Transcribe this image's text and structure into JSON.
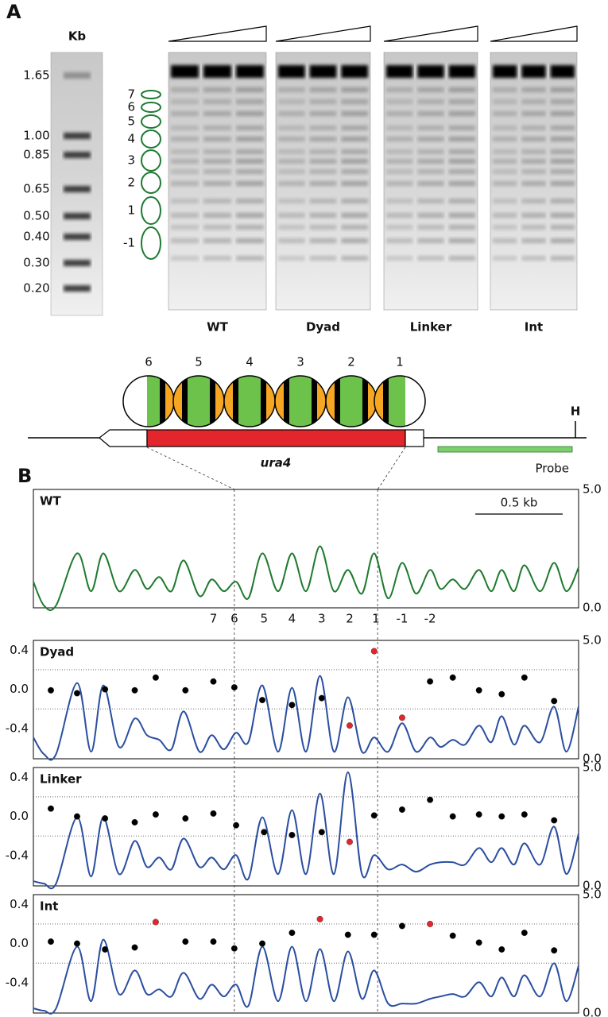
{
  "panel_a": {
    "label": "A",
    "marker_header": "Kb",
    "markers": [
      "1.65",
      "1.00",
      "0.85",
      "0.65",
      "0.50",
      "0.40",
      "0.30",
      "0.20"
    ],
    "nucleosomes": [
      "7",
      "6",
      "5",
      "4",
      "3",
      "2",
      "1",
      "-1"
    ],
    "lanes": [
      "WT",
      "Dyad",
      "Linker",
      "Int"
    ]
  },
  "panel_b": {
    "label": "B",
    "nucleosomes": [
      "6",
      "5",
      "4",
      "3",
      "2",
      "1"
    ],
    "gene": "ura4",
    "site": "H",
    "probe": "Probe",
    "guides": [
      1.15,
      1.97
    ]
  },
  "chart_data": [
    {
      "type": "line",
      "title": "WT",
      "x": [
        0,
        0.06,
        0.13,
        0.25,
        0.33,
        0.4,
        0.49,
        0.58,
        0.65,
        0.72,
        0.79,
        0.86,
        0.95,
        1.02,
        1.09,
        1.16,
        1.23,
        1.31,
        1.4,
        1.48,
        1.56,
        1.64,
        1.72,
        1.8,
        1.88,
        1.95,
        2.03,
        2.11,
        2.19,
        2.27,
        2.33,
        2.4,
        2.47,
        2.55,
        2.62,
        2.68,
        2.75,
        2.81,
        2.9,
        2.98,
        3.05,
        3.12
      ],
      "xlim": [
        0,
        3.12
      ],
      "series": [
        {
          "color": "#1f7a2e",
          "axis": "y2",
          "values": [
            1.1,
            0.1,
            0.1,
            2.3,
            0.7,
            2.3,
            0.7,
            1.6,
            0.8,
            1.3,
            0.7,
            2.0,
            0.5,
            1.2,
            0.7,
            1.1,
            0.4,
            2.3,
            0.7,
            2.3,
            0.7,
            2.6,
            0.7,
            1.6,
            0.6,
            2.3,
            0.4,
            1.9,
            0.6,
            1.6,
            0.8,
            1.2,
            0.8,
            1.6,
            0.7,
            1.6,
            0.7,
            1.8,
            0.7,
            1.9,
            0.7,
            1.7
          ]
        }
      ],
      "y2lim": [
        0,
        5
      ],
      "y2ticks": [
        {
          "value": 0,
          "label": "0.0"
        },
        {
          "value": 5,
          "label": "5.0"
        }
      ],
      "scale_bar": {
        "label": "0.5 kb",
        "length": 0.5
      },
      "position_labels": {
        "labels": [
          "7",
          "6",
          "5",
          "4",
          "3",
          "2",
          "1",
          "-1",
          "-2"
        ],
        "x": [
          1.03,
          1.15,
          1.32,
          1.48,
          1.65,
          1.81,
          1.96,
          2.11,
          2.27
        ]
      }
    },
    {
      "type": "line",
      "title": "Dyad",
      "x": [
        0,
        0.06,
        0.13,
        0.25,
        0.33,
        0.4,
        0.49,
        0.58,
        0.65,
        0.72,
        0.79,
        0.86,
        0.95,
        1.02,
        1.09,
        1.16,
        1.23,
        1.31,
        1.4,
        1.48,
        1.56,
        1.64,
        1.72,
        1.8,
        1.88,
        1.95,
        2.03,
        2.11,
        2.19,
        2.27,
        2.33,
        2.4,
        2.47,
        2.55,
        2.62,
        2.68,
        2.75,
        2.81,
        2.9,
        2.98,
        3.05,
        3.12
      ],
      "xlim": [
        0,
        3.12
      ],
      "series": [
        {
          "color": "#2a4ea0",
          "axis": "y2",
          "values": [
            0.9,
            0.2,
            0.2,
            3.2,
            0.3,
            3.1,
            0.5,
            1.7,
            1.0,
            0.8,
            0.4,
            2.0,
            0.3,
            1.0,
            0.4,
            1.1,
            0.7,
            3.1,
            0.3,
            3.0,
            0.3,
            3.5,
            0.3,
            2.6,
            0.3,
            0.9,
            0.3,
            1.5,
            0.3,
            0.9,
            0.5,
            0.8,
            0.6,
            1.4,
            0.7,
            1.8,
            0.6,
            1.4,
            0.7,
            2.2,
            0.3,
            2.2
          ]
        }
      ],
      "ylim": [
        -0.71,
        0.5
      ],
      "yticks": [
        0.4,
        {
          "value": 0,
          "label": "0.0"
        },
        -0.4
      ],
      "grid_lines": [
        -0.2,
        0.2
      ],
      "y2lim": [
        0,
        5
      ],
      "y2ticks": [
        {
          "value": 0,
          "label": "0.0"
        },
        {
          "value": 5,
          "label": "5.0"
        }
      ],
      "points": {
        "x": [
          0.1,
          0.25,
          0.41,
          0.58,
          0.7,
          0.87,
          1.03,
          1.15,
          1.31,
          1.48,
          1.65,
          1.81,
          1.95,
          2.11,
          2.27,
          2.4,
          2.55,
          2.68,
          2.81,
          2.98
        ],
        "values": [
          -0.01,
          -0.04,
          0.0,
          -0.01,
          0.12,
          -0.01,
          0.08,
          0.02,
          -0.11,
          -0.16,
          -0.09,
          -0.37,
          0.39,
          -0.29,
          0.08,
          0.12,
          -0.01,
          -0.05,
          0.12,
          -0.12
        ],
        "colors": [
          "#000",
          "#000",
          "#000",
          "#000",
          "#000",
          "#000",
          "#000",
          "#000",
          "#000",
          "#000",
          "#000",
          "#e3262b",
          "#e3262b",
          "#e3262b",
          "#000",
          "#000",
          "#000",
          "#000",
          "#000",
          "#000"
        ]
      }
    },
    {
      "type": "line",
      "title": "Linker",
      "x": [
        0,
        0.06,
        0.13,
        0.25,
        0.33,
        0.4,
        0.49,
        0.58,
        0.65,
        0.72,
        0.79,
        0.86,
        0.95,
        1.02,
        1.09,
        1.16,
        1.23,
        1.31,
        1.4,
        1.48,
        1.56,
        1.64,
        1.72,
        1.8,
        1.88,
        1.95,
        2.03,
        2.11,
        2.19,
        2.27,
        2.33,
        2.4,
        2.47,
        2.55,
        2.62,
        2.68,
        2.75,
        2.81,
        2.9,
        2.98,
        3.05,
        3.12
      ],
      "xlim": [
        0,
        3.12
      ],
      "series": [
        {
          "color": "#2a4ea0",
          "axis": "y2",
          "values": [
            0.2,
            0.1,
            0.1,
            2.9,
            0.4,
            2.9,
            0.5,
            1.9,
            0.8,
            1.2,
            0.7,
            2.0,
            0.8,
            1.2,
            0.7,
            1.3,
            0.3,
            2.9,
            0.5,
            3.2,
            0.5,
            3.9,
            0.5,
            4.8,
            0.5,
            1.3,
            0.7,
            0.9,
            0.6,
            0.9,
            1.0,
            1.0,
            0.9,
            1.6,
            1.0,
            1.6,
            0.9,
            1.8,
            0.9,
            2.5,
            0.5,
            2.2
          ]
        }
      ],
      "ylim": [
        -0.71,
        0.5
      ],
      "yticks": [
        0.4,
        {
          "value": 0,
          "label": "0.0"
        },
        -0.4
      ],
      "grid_lines": [
        -0.2,
        0.2
      ],
      "y2lim": [
        0,
        5
      ],
      "y2ticks": [
        {
          "value": 0,
          "label": "0.0"
        },
        {
          "value": 5,
          "label": "5.0"
        }
      ],
      "points": {
        "x": [
          0.1,
          0.25,
          0.41,
          0.58,
          0.7,
          0.87,
          1.03,
          1.16,
          1.32,
          1.48,
          1.65,
          1.81,
          1.95,
          2.11,
          2.27,
          2.4,
          2.55,
          2.68,
          2.81,
          2.98
        ],
        "values": [
          0.08,
          0.0,
          -0.02,
          -0.06,
          0.02,
          -0.02,
          0.03,
          -0.09,
          -0.16,
          -0.19,
          -0.16,
          -0.26,
          0.01,
          0.07,
          0.17,
          0.0,
          0.02,
          0.0,
          0.02,
          -0.04
        ],
        "colors": [
          "#000",
          "#000",
          "#000",
          "#000",
          "#000",
          "#000",
          "#000",
          "#000",
          "#000",
          "#000",
          "#000",
          "#e3262b",
          "#000",
          "#000",
          "#000",
          "#000",
          "#000",
          "#000",
          "#000",
          "#000"
        ]
      }
    },
    {
      "type": "line",
      "title": "Int",
      "x": [
        0,
        0.06,
        0.13,
        0.25,
        0.33,
        0.4,
        0.49,
        0.58,
        0.65,
        0.72,
        0.79,
        0.86,
        0.95,
        1.02,
        1.09,
        1.16,
        1.23,
        1.31,
        1.4,
        1.48,
        1.56,
        1.64,
        1.72,
        1.8,
        1.88,
        1.95,
        2.03,
        2.11,
        2.19,
        2.27,
        2.33,
        2.4,
        2.47,
        2.55,
        2.62,
        2.68,
        2.75,
        2.81,
        2.9,
        2.98,
        3.05,
        3.12
      ],
      "xlim": [
        0,
        3.12
      ],
      "series": [
        {
          "color": "#2a4ea0",
          "axis": "y2",
          "values": [
            0.2,
            0.1,
            0.2,
            2.8,
            0.5,
            3.1,
            0.8,
            1.8,
            0.8,
            1.0,
            0.7,
            1.7,
            0.6,
            1.2,
            0.7,
            1.2,
            0.3,
            2.8,
            0.5,
            2.8,
            0.5,
            2.7,
            0.5,
            2.6,
            0.6,
            1.8,
            0.4,
            0.4,
            0.4,
            0.6,
            0.7,
            0.8,
            0.7,
            1.3,
            0.7,
            1.5,
            0.7,
            1.6,
            0.7,
            2.1,
            0.5,
            2.0
          ]
        }
      ],
      "ylim": [
        -0.71,
        0.5
      ],
      "yticks": [
        0.4,
        {
          "value": 0,
          "label": "0.0"
        },
        -0.4
      ],
      "grid_lines": [
        -0.2,
        0.2
      ],
      "y2lim": [
        0,
        5
      ],
      "y2ticks": [
        {
          "value": 0,
          "label": "0.0"
        },
        {
          "value": 5,
          "label": "5.0"
        }
      ],
      "points": {
        "x": [
          0.1,
          0.25,
          0.41,
          0.58,
          0.7,
          0.87,
          1.03,
          1.15,
          1.31,
          1.48,
          1.64,
          1.8,
          1.95,
          2.11,
          2.27,
          2.4,
          2.55,
          2.68,
          2.81,
          2.98
        ],
        "values": [
          0.02,
          0.0,
          -0.06,
          -0.04,
          0.22,
          0.02,
          0.02,
          -0.05,
          0.0,
          0.11,
          0.25,
          0.09,
          0.09,
          0.18,
          0.2,
          0.08,
          0.01,
          -0.06,
          0.11,
          -0.07
        ],
        "colors": [
          "#000",
          "#000",
          "#000",
          "#000",
          "#e3262b",
          "#000",
          "#000",
          "#000",
          "#000",
          "#000",
          "#e3262b",
          "#000",
          "#000",
          "#000",
          "#e3262b",
          "#000",
          "#000",
          "#000",
          "#000",
          "#000"
        ]
      }
    }
  ]
}
